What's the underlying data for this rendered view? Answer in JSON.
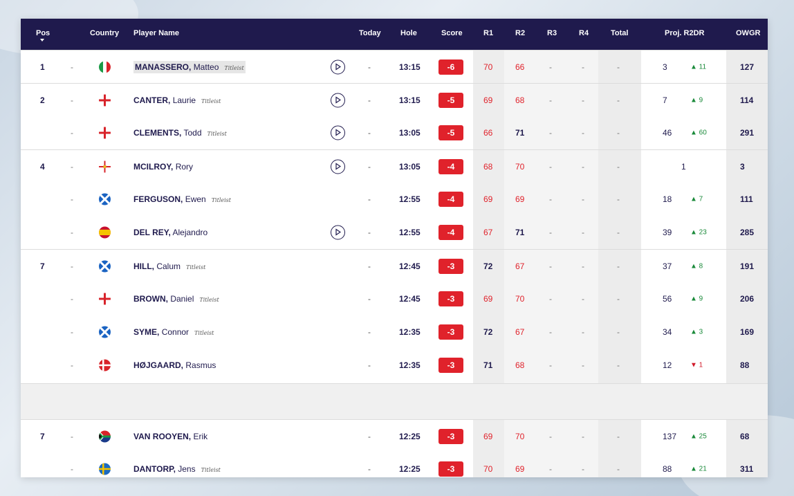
{
  "header": {
    "pos": "Pos",
    "country": "Country",
    "player": "Player Name",
    "today": "Today",
    "hole": "Hole",
    "score": "Score",
    "r1": "R1",
    "r2": "R2",
    "r3": "R3",
    "r4": "R4",
    "total": "Total",
    "proj": "Proj. R2DR",
    "owgr": "OWGR"
  },
  "rows": [
    {
      "pos": "1",
      "last": "MANASSERO,",
      "first": "Matteo",
      "titleist": true,
      "play": true,
      "today": "-",
      "hole": "13:15",
      "score": "-6",
      "r1": "70",
      "r2": "66",
      "r3": "-",
      "r4": "-",
      "total": "-",
      "proj": "3",
      "move": "▲ 11",
      "dir": "up",
      "owgr": "127",
      "flag": "it",
      "r1red": true,
      "r2red": true
    },
    {
      "pos": "2",
      "last": "CANTER,",
      "first": "Laurie",
      "titleist": true,
      "play": true,
      "today": "-",
      "hole": "13:15",
      "score": "-5",
      "r1": "69",
      "r2": "68",
      "r3": "-",
      "r4": "-",
      "total": "-",
      "proj": "7",
      "move": "▲ 9",
      "dir": "up",
      "owgr": "114",
      "flag": "en",
      "r1red": true,
      "r2red": true
    },
    {
      "pos": "",
      "last": "CLEMENTS,",
      "first": "Todd",
      "titleist": true,
      "play": true,
      "today": "-",
      "hole": "13:05",
      "score": "-5",
      "r1": "66",
      "r2": "71",
      "r3": "-",
      "r4": "-",
      "total": "-",
      "proj": "46",
      "move": "▲ 60",
      "dir": "up",
      "owgr": "291",
      "flag": "en",
      "r1red": true,
      "r2red": false
    },
    {
      "pos": "4",
      "last": "MCILROY,",
      "first": "Rory",
      "titleist": false,
      "play": true,
      "today": "-",
      "hole": "13:05",
      "score": "-4",
      "r1": "68",
      "r2": "70",
      "r3": "-",
      "r4": "-",
      "total": "-",
      "proj": "1",
      "move": "",
      "dir": "",
      "owgr": "3",
      "flag": "ni",
      "r1red": true,
      "r2red": true
    },
    {
      "pos": "",
      "last": "FERGUSON,",
      "first": "Ewen",
      "titleist": true,
      "play": false,
      "today": "-",
      "hole": "12:55",
      "score": "-4",
      "r1": "69",
      "r2": "69",
      "r3": "-",
      "r4": "-",
      "total": "-",
      "proj": "18",
      "move": "▲ 7",
      "dir": "up",
      "owgr": "111",
      "flag": "sc",
      "r1red": true,
      "r2red": true
    },
    {
      "pos": "",
      "last": "DEL REY,",
      "first": "Alejandro",
      "titleist": false,
      "play": true,
      "today": "-",
      "hole": "12:55",
      "score": "-4",
      "r1": "67",
      "r2": "71",
      "r3": "-",
      "r4": "-",
      "total": "-",
      "proj": "39",
      "move": "▲ 23",
      "dir": "up",
      "owgr": "285",
      "flag": "es",
      "r1red": true,
      "r2red": false
    },
    {
      "pos": "7",
      "last": "HILL,",
      "first": "Calum",
      "titleist": true,
      "play": false,
      "today": "-",
      "hole": "12:45",
      "score": "-3",
      "r1": "72",
      "r2": "67",
      "r3": "-",
      "r4": "-",
      "total": "-",
      "proj": "37",
      "move": "▲ 8",
      "dir": "up",
      "owgr": "191",
      "flag": "sc",
      "r1red": false,
      "r2red": true
    },
    {
      "pos": "",
      "last": "BROWN,",
      "first": "Daniel",
      "titleist": true,
      "play": false,
      "today": "-",
      "hole": "12:45",
      "score": "-3",
      "r1": "69",
      "r2": "70",
      "r3": "-",
      "r4": "-",
      "total": "-",
      "proj": "56",
      "move": "▲ 9",
      "dir": "up",
      "owgr": "206",
      "flag": "en",
      "r1red": true,
      "r2red": true
    },
    {
      "pos": "",
      "last": "SYME,",
      "first": "Connor",
      "titleist": true,
      "play": false,
      "today": "-",
      "hole": "12:35",
      "score": "-3",
      "r1": "72",
      "r2": "67",
      "r3": "-",
      "r4": "-",
      "total": "-",
      "proj": "34",
      "move": "▲ 3",
      "dir": "up",
      "owgr": "169",
      "flag": "sc",
      "r1red": false,
      "r2red": true
    },
    {
      "pos": "",
      "last": "HØJGAARD,",
      "first": "Rasmus",
      "titleist": false,
      "play": false,
      "today": "-",
      "hole": "12:35",
      "score": "-3",
      "r1": "71",
      "r2": "68",
      "r3": "-",
      "r4": "-",
      "total": "-",
      "proj": "12",
      "move": "▼ 1",
      "dir": "down",
      "owgr": "88",
      "flag": "dk",
      "r1red": false,
      "r2red": true
    },
    {
      "pos": "7",
      "last": "VAN ROOYEN,",
      "first": "Erik",
      "titleist": false,
      "play": false,
      "today": "-",
      "hole": "12:25",
      "score": "-3",
      "r1": "69",
      "r2": "70",
      "r3": "-",
      "r4": "-",
      "total": "-",
      "proj": "137",
      "move": "▲ 25",
      "dir": "up",
      "owgr": "68",
      "flag": "za",
      "r1red": true,
      "r2red": true
    },
    {
      "pos": "",
      "last": "DANTORP,",
      "first": "Jens",
      "titleist": true,
      "play": false,
      "today": "-",
      "hole": "12:25",
      "score": "-3",
      "r1": "70",
      "r2": "69",
      "r3": "-",
      "r4": "-",
      "total": "-",
      "proj": "88",
      "move": "▲ 21",
      "dir": "up",
      "owgr": "311",
      "flag": "se",
      "r1red": true,
      "r2red": true
    }
  ],
  "dash": "-",
  "brand": "Titleist",
  "colors": {
    "header": "#1f1a4d",
    "score": "#e0222b",
    "up": "#1a8a3a",
    "down": "#d11a2a"
  }
}
